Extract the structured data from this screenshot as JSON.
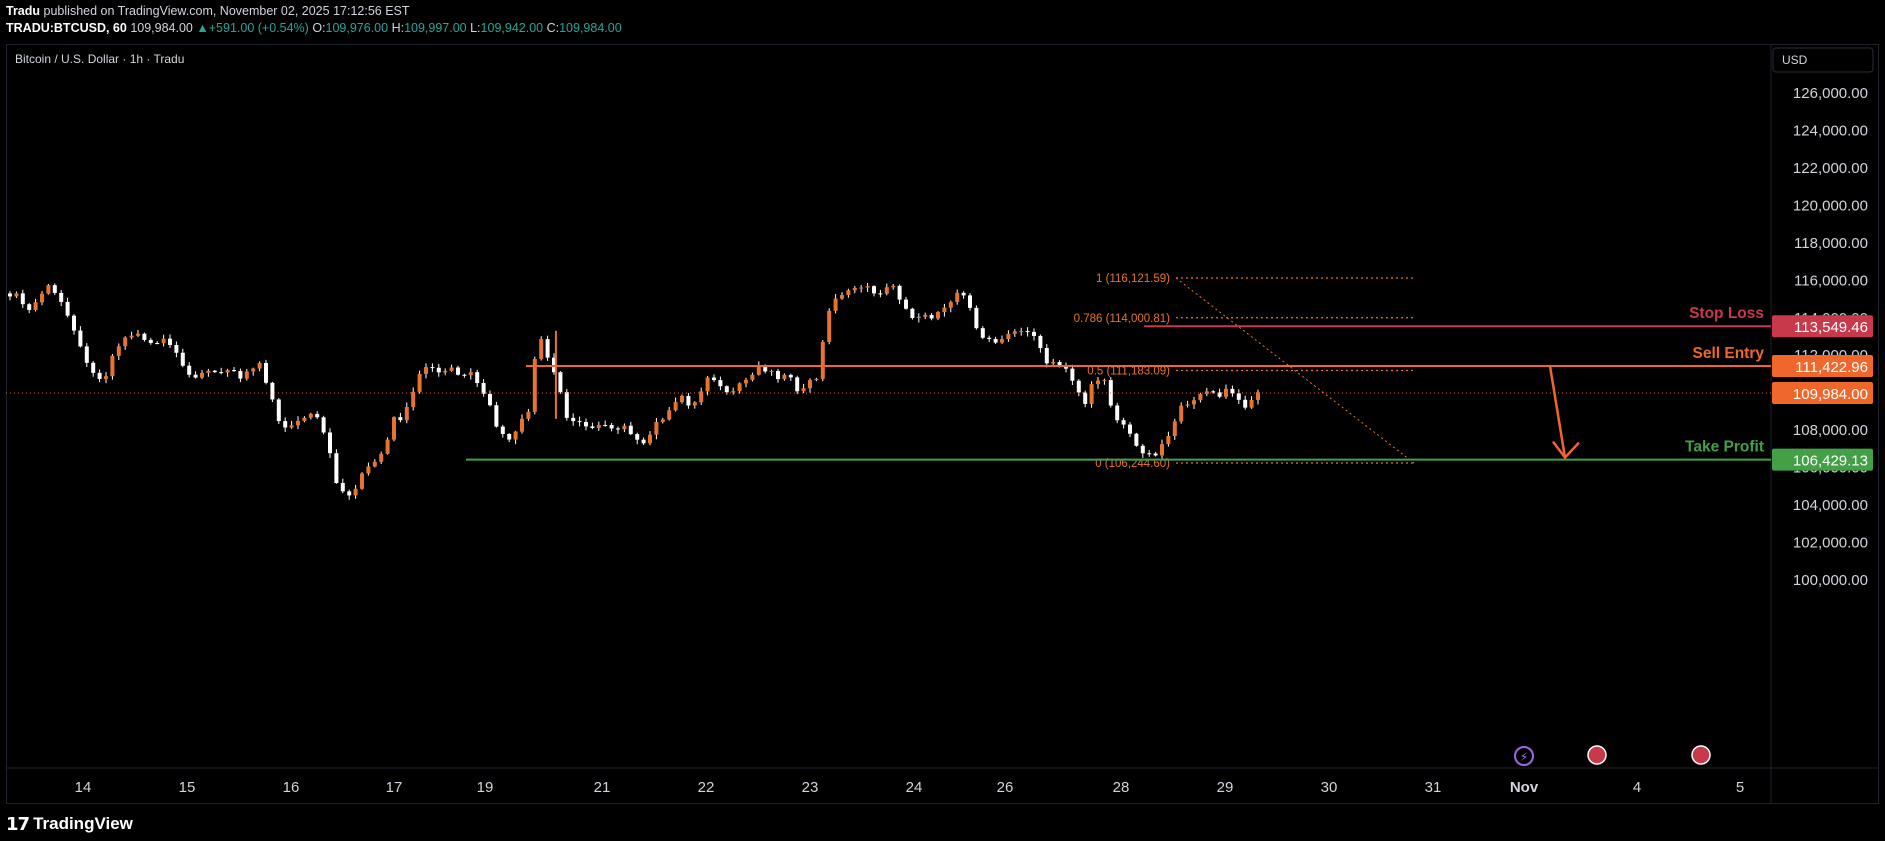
{
  "header": {
    "publisher": "Tradu",
    "published_text": "published on TradingView.com, November 02, 2025 17:12:56 EST",
    "symbol": "TRADU:BTCUSD, 60",
    "last": "109,984.00",
    "change": "+591.00 (+0.54%)",
    "open_label": "O:",
    "open": "109,976.00",
    "high_label": "H:",
    "high": "109,997.00",
    "low_label": "L:",
    "low": "109,942.00",
    "close_label": "C:",
    "close": "109,984.00"
  },
  "chart_title": "Bitcoin / U.S. Dollar · 1h · Tradu",
  "currency": "USD",
  "footer": {
    "brand": "TradingView"
  },
  "colors": {
    "background": "#000000",
    "candle": "#ffffff",
    "fib": "#e8742c",
    "sell_entry": "#f0672b",
    "stop_loss": "#c8394b",
    "take_profit": "#43a047",
    "axis_text": "#d1d4dc"
  },
  "chart_data": {
    "type": "candlestick",
    "symbol": "BTCUSD",
    "timeframe": "1h",
    "y_axis": {
      "min": 98000,
      "max": 127500,
      "ticks": [
        126000,
        124000,
        122000,
        120000,
        118000,
        116000,
        114000,
        112000,
        110000,
        108000,
        106000,
        104000,
        102000,
        100000
      ],
      "tick_labels": [
        "126,000.00",
        "124,000.00",
        "122,000.00",
        "120,000.00",
        "118,000.00",
        "116,000.00",
        "114,000.00",
        "112,000.00",
        "110,000.00",
        "108,000.00",
        "106,000.00",
        "104,000.00",
        "102,000.00",
        "100,000.00"
      ]
    },
    "x_axis": {
      "labels": [
        "14",
        "15",
        "16",
        "17",
        "19",
        "21",
        "22",
        "23",
        "24",
        "26",
        "28",
        "29",
        "30",
        "31",
        "Nov",
        "4",
        "5"
      ],
      "bold_label": "Nov"
    },
    "price_path": [
      [
        0,
        115300
      ],
      [
        1.5,
        115100
      ],
      [
        3,
        114400
      ],
      [
        4.5,
        115100
      ],
      [
        6,
        115700
      ],
      [
        7.5,
        115300
      ],
      [
        9,
        114100
      ],
      [
        10.5,
        112700
      ],
      [
        12,
        111700
      ],
      [
        13.5,
        110500
      ],
      [
        15,
        110900
      ],
      [
        16.5,
        112300
      ],
      [
        18,
        112900
      ],
      [
        19.5,
        113200
      ],
      [
        21,
        112800
      ],
      [
        22.5,
        112500
      ],
      [
        24,
        113000
      ],
      [
        25.5,
        112400
      ],
      [
        27,
        111600
      ],
      [
        28.5,
        110800
      ],
      [
        30,
        110900
      ],
      [
        31.5,
        111200
      ],
      [
        33,
        111100
      ],
      [
        34.5,
        111400
      ],
      [
        36,
        110600
      ],
      [
        37.5,
        111200
      ],
      [
        39,
        111500
      ],
      [
        40.5,
        110000
      ],
      [
        42,
        108500
      ],
      [
        43.5,
        108100
      ],
      [
        45,
        108400
      ],
      [
        46.5,
        108900
      ],
      [
        48,
        108800
      ],
      [
        49.5,
        107600
      ],
      [
        51,
        105300
      ],
      [
        52.5,
        104300
      ],
      [
        54,
        104900
      ],
      [
        55.5,
        105900
      ],
      [
        57,
        106400
      ],
      [
        58.5,
        107000
      ],
      [
        60,
        108800
      ],
      [
        61.5,
        108600
      ],
      [
        63,
        110200
      ],
      [
        64.5,
        111600
      ],
      [
        66,
        111300
      ],
      [
        67.5,
        111100
      ],
      [
        69,
        111400
      ],
      [
        70.5,
        110800
      ],
      [
        72,
        111200
      ],
      [
        73.5,
        110400
      ],
      [
        75,
        109300
      ],
      [
        76.5,
        107800
      ],
      [
        78,
        107600
      ],
      [
        79.5,
        108300
      ],
      [
        81,
        109000
      ],
      [
        82.5,
        113400
      ],
      [
        84,
        112000
      ],
      [
        85.5,
        110700
      ],
      [
        87,
        108700
      ],
      [
        88.5,
        108400
      ],
      [
        90,
        108100
      ],
      [
        91.5,
        108300
      ],
      [
        93,
        108200
      ],
      [
        94.5,
        107900
      ],
      [
        96,
        108100
      ],
      [
        97.5,
        107800
      ],
      [
        99,
        107300
      ],
      [
        100.5,
        108100
      ],
      [
        102,
        108700
      ],
      [
        103.5,
        109400
      ],
      [
        105,
        109700
      ],
      [
        106.5,
        109200
      ],
      [
        108,
        110000
      ],
      [
        109.5,
        111000
      ],
      [
        111,
        110300
      ],
      [
        112.5,
        110100
      ],
      [
        114,
        110500
      ],
      [
        115.5,
        110800
      ],
      [
        117,
        111300
      ],
      [
        118.5,
        111100
      ],
      [
        120,
        110800
      ],
      [
        121.5,
        110900
      ],
      [
        123,
        110200
      ],
      [
        124.5,
        110500
      ],
      [
        126,
        110800
      ],
      [
        127.5,
        113800
      ],
      [
        129,
        115100
      ],
      [
        130.5,
        115300
      ],
      [
        132,
        115500
      ],
      [
        133.5,
        115900
      ],
      [
        135,
        115200
      ],
      [
        136.5,
        115500
      ],
      [
        138,
        115600
      ],
      [
        139.5,
        114800
      ],
      [
        141,
        113900
      ],
      [
        142.5,
        114000
      ],
      [
        144,
        114100
      ],
      [
        145.5,
        114300
      ],
      [
        147,
        114700
      ],
      [
        148.5,
        115600
      ],
      [
        150,
        114400
      ],
      [
        151.5,
        113200
      ],
      [
        153,
        112800
      ],
      [
        154.5,
        112600
      ],
      [
        156,
        113000
      ],
      [
        157.5,
        113400
      ],
      [
        159,
        113300
      ],
      [
        160.5,
        112700
      ],
      [
        162,
        111700
      ],
      [
        163.5,
        111600
      ],
      [
        165,
        111300
      ],
      [
        166.5,
        110200
      ],
      [
        168,
        109400
      ],
      [
        169.5,
        110900
      ],
      [
        171,
        110600
      ],
      [
        172.5,
        108500
      ],
      [
        174,
        108300
      ],
      [
        175.5,
        107500
      ],
      [
        177,
        106800
      ],
      [
        178.5,
        106500
      ],
      [
        180,
        107100
      ],
      [
        181.5,
        108000
      ],
      [
        183,
        109200
      ],
      [
        184.5,
        109700
      ],
      [
        186,
        109800
      ],
      [
        187.5,
        110100
      ],
      [
        189,
        109900
      ],
      [
        190.5,
        110300
      ],
      [
        192,
        109600
      ],
      [
        193.5,
        109200
      ],
      [
        195,
        109984
      ]
    ],
    "fibonacci": [
      {
        "level": "1",
        "price": 116121.59,
        "label": "1 (116,121.59)"
      },
      {
        "level": "0.786",
        "price": 114000,
        "label": "0.786 (114,000.81)"
      },
      {
        "level": "0.5",
        "price": 111183.09,
        "label": "0.5 (111,183.09)"
      },
      {
        "level": "0",
        "price": 106244.6,
        "label": "0 (106,244.60)"
      }
    ],
    "levels": [
      {
        "name": "Stop Loss",
        "price": 113549.46,
        "label": "113,549.46"
      },
      {
        "name": "Sell Entry",
        "price": 111422.96,
        "label": "111,422.96"
      },
      {
        "name": "Take Profit",
        "price": 106429.13,
        "label": "106,429.13"
      }
    ],
    "last_price": {
      "price": 109984.0,
      "label": "109,984.00"
    },
    "projection": {
      "from_price": 111422.96,
      "to_price": 106429.13
    }
  }
}
